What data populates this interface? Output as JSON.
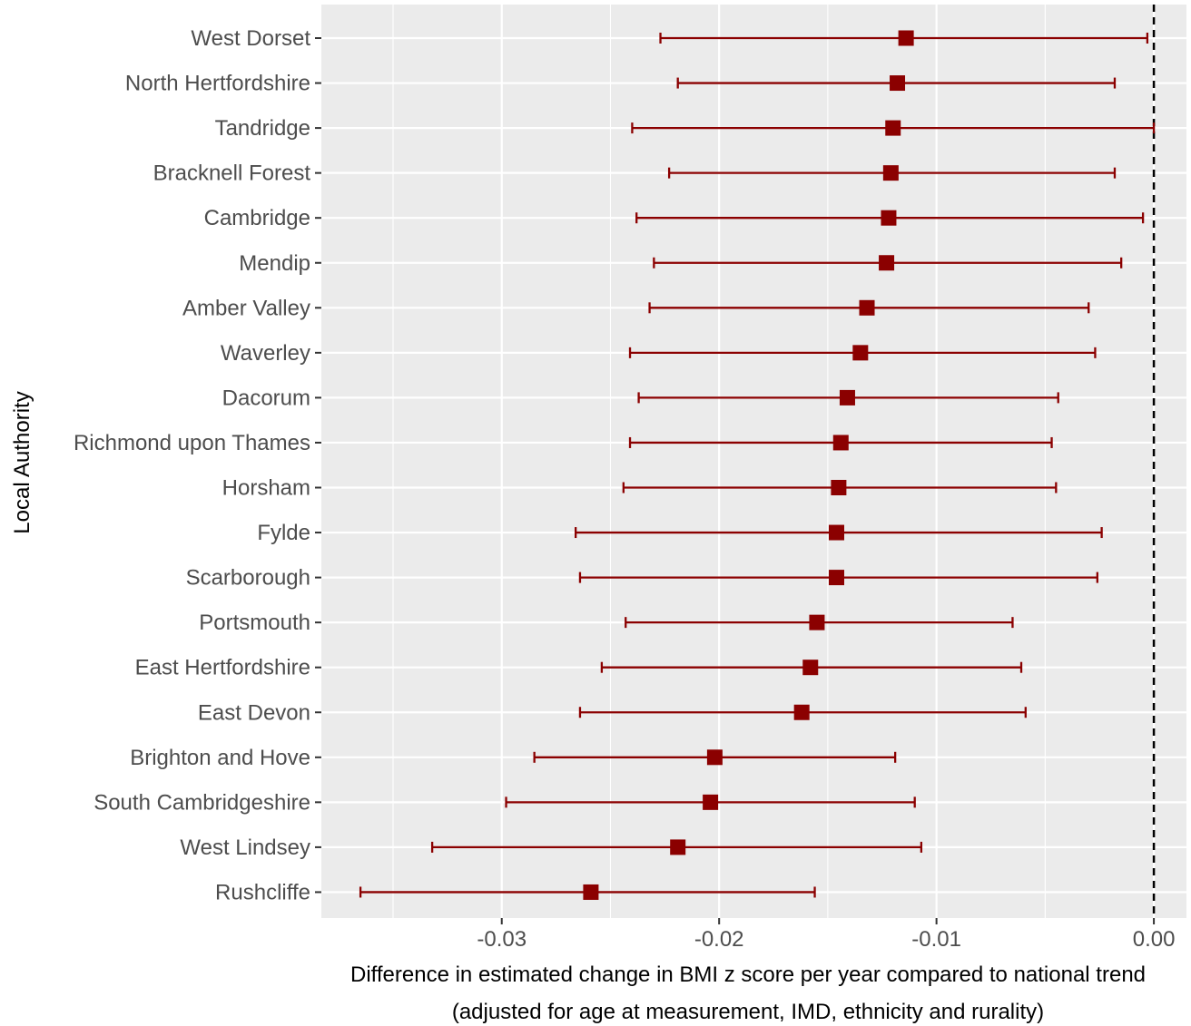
{
  "chart_data": {
    "type": "forest",
    "xlabel": "Difference in estimated change in BMI z score per year compared to national trend",
    "xlabel_line2": "(adjusted for age at measurement, IMD, ethnicity and rurality)",
    "ylabel": "Local Authority",
    "xlim": [
      -0.0383,
      0.0015
    ],
    "x_ticks": [
      -0.03,
      -0.02,
      -0.01,
      0.0
    ],
    "x_tick_labels": [
      "-0.03",
      "-0.02",
      "-0.01",
      "0.00"
    ],
    "reference_line": 0.0,
    "grid": true,
    "colors": {
      "marker": "#8b0000",
      "panel": "#ebebeb",
      "grid": "#ffffff"
    },
    "categories": [
      "West Dorset",
      "North Hertfordshire",
      "Tandridge",
      "Bracknell Forest",
      "Cambridge",
      "Mendip",
      "Amber Valley",
      "Waverley",
      "Dacorum",
      "Richmond upon Thames",
      "Horsham",
      "Fylde",
      "Scarborough",
      "Portsmouth",
      "East Hertfordshire",
      "East Devon",
      "Brighton and Hove",
      "South Cambridgeshire",
      "West Lindsey",
      "Rushcliffe"
    ],
    "estimates": [
      -0.0114,
      -0.0118,
      -0.012,
      -0.0121,
      -0.0122,
      -0.0123,
      -0.0132,
      -0.0135,
      -0.0141,
      -0.0144,
      -0.0145,
      -0.0146,
      -0.0146,
      -0.0155,
      -0.0158,
      -0.0162,
      -0.0202,
      -0.0204,
      -0.0219,
      -0.0259
    ],
    "lower": [
      -0.0227,
      -0.0219,
      -0.024,
      -0.0223,
      -0.0238,
      -0.023,
      -0.0232,
      -0.0241,
      -0.0237,
      -0.0241,
      -0.0244,
      -0.0266,
      -0.0264,
      -0.0243,
      -0.0254,
      -0.0264,
      -0.0285,
      -0.0298,
      -0.0332,
      -0.0365
    ],
    "upper": [
      -0.0003,
      -0.0018,
      0.0,
      -0.0018,
      -0.0005,
      -0.0015,
      -0.003,
      -0.0027,
      -0.0044,
      -0.0047,
      -0.0045,
      -0.0024,
      -0.0026,
      -0.0065,
      -0.0061,
      -0.0059,
      -0.0119,
      -0.011,
      -0.0107,
      -0.0156
    ]
  }
}
